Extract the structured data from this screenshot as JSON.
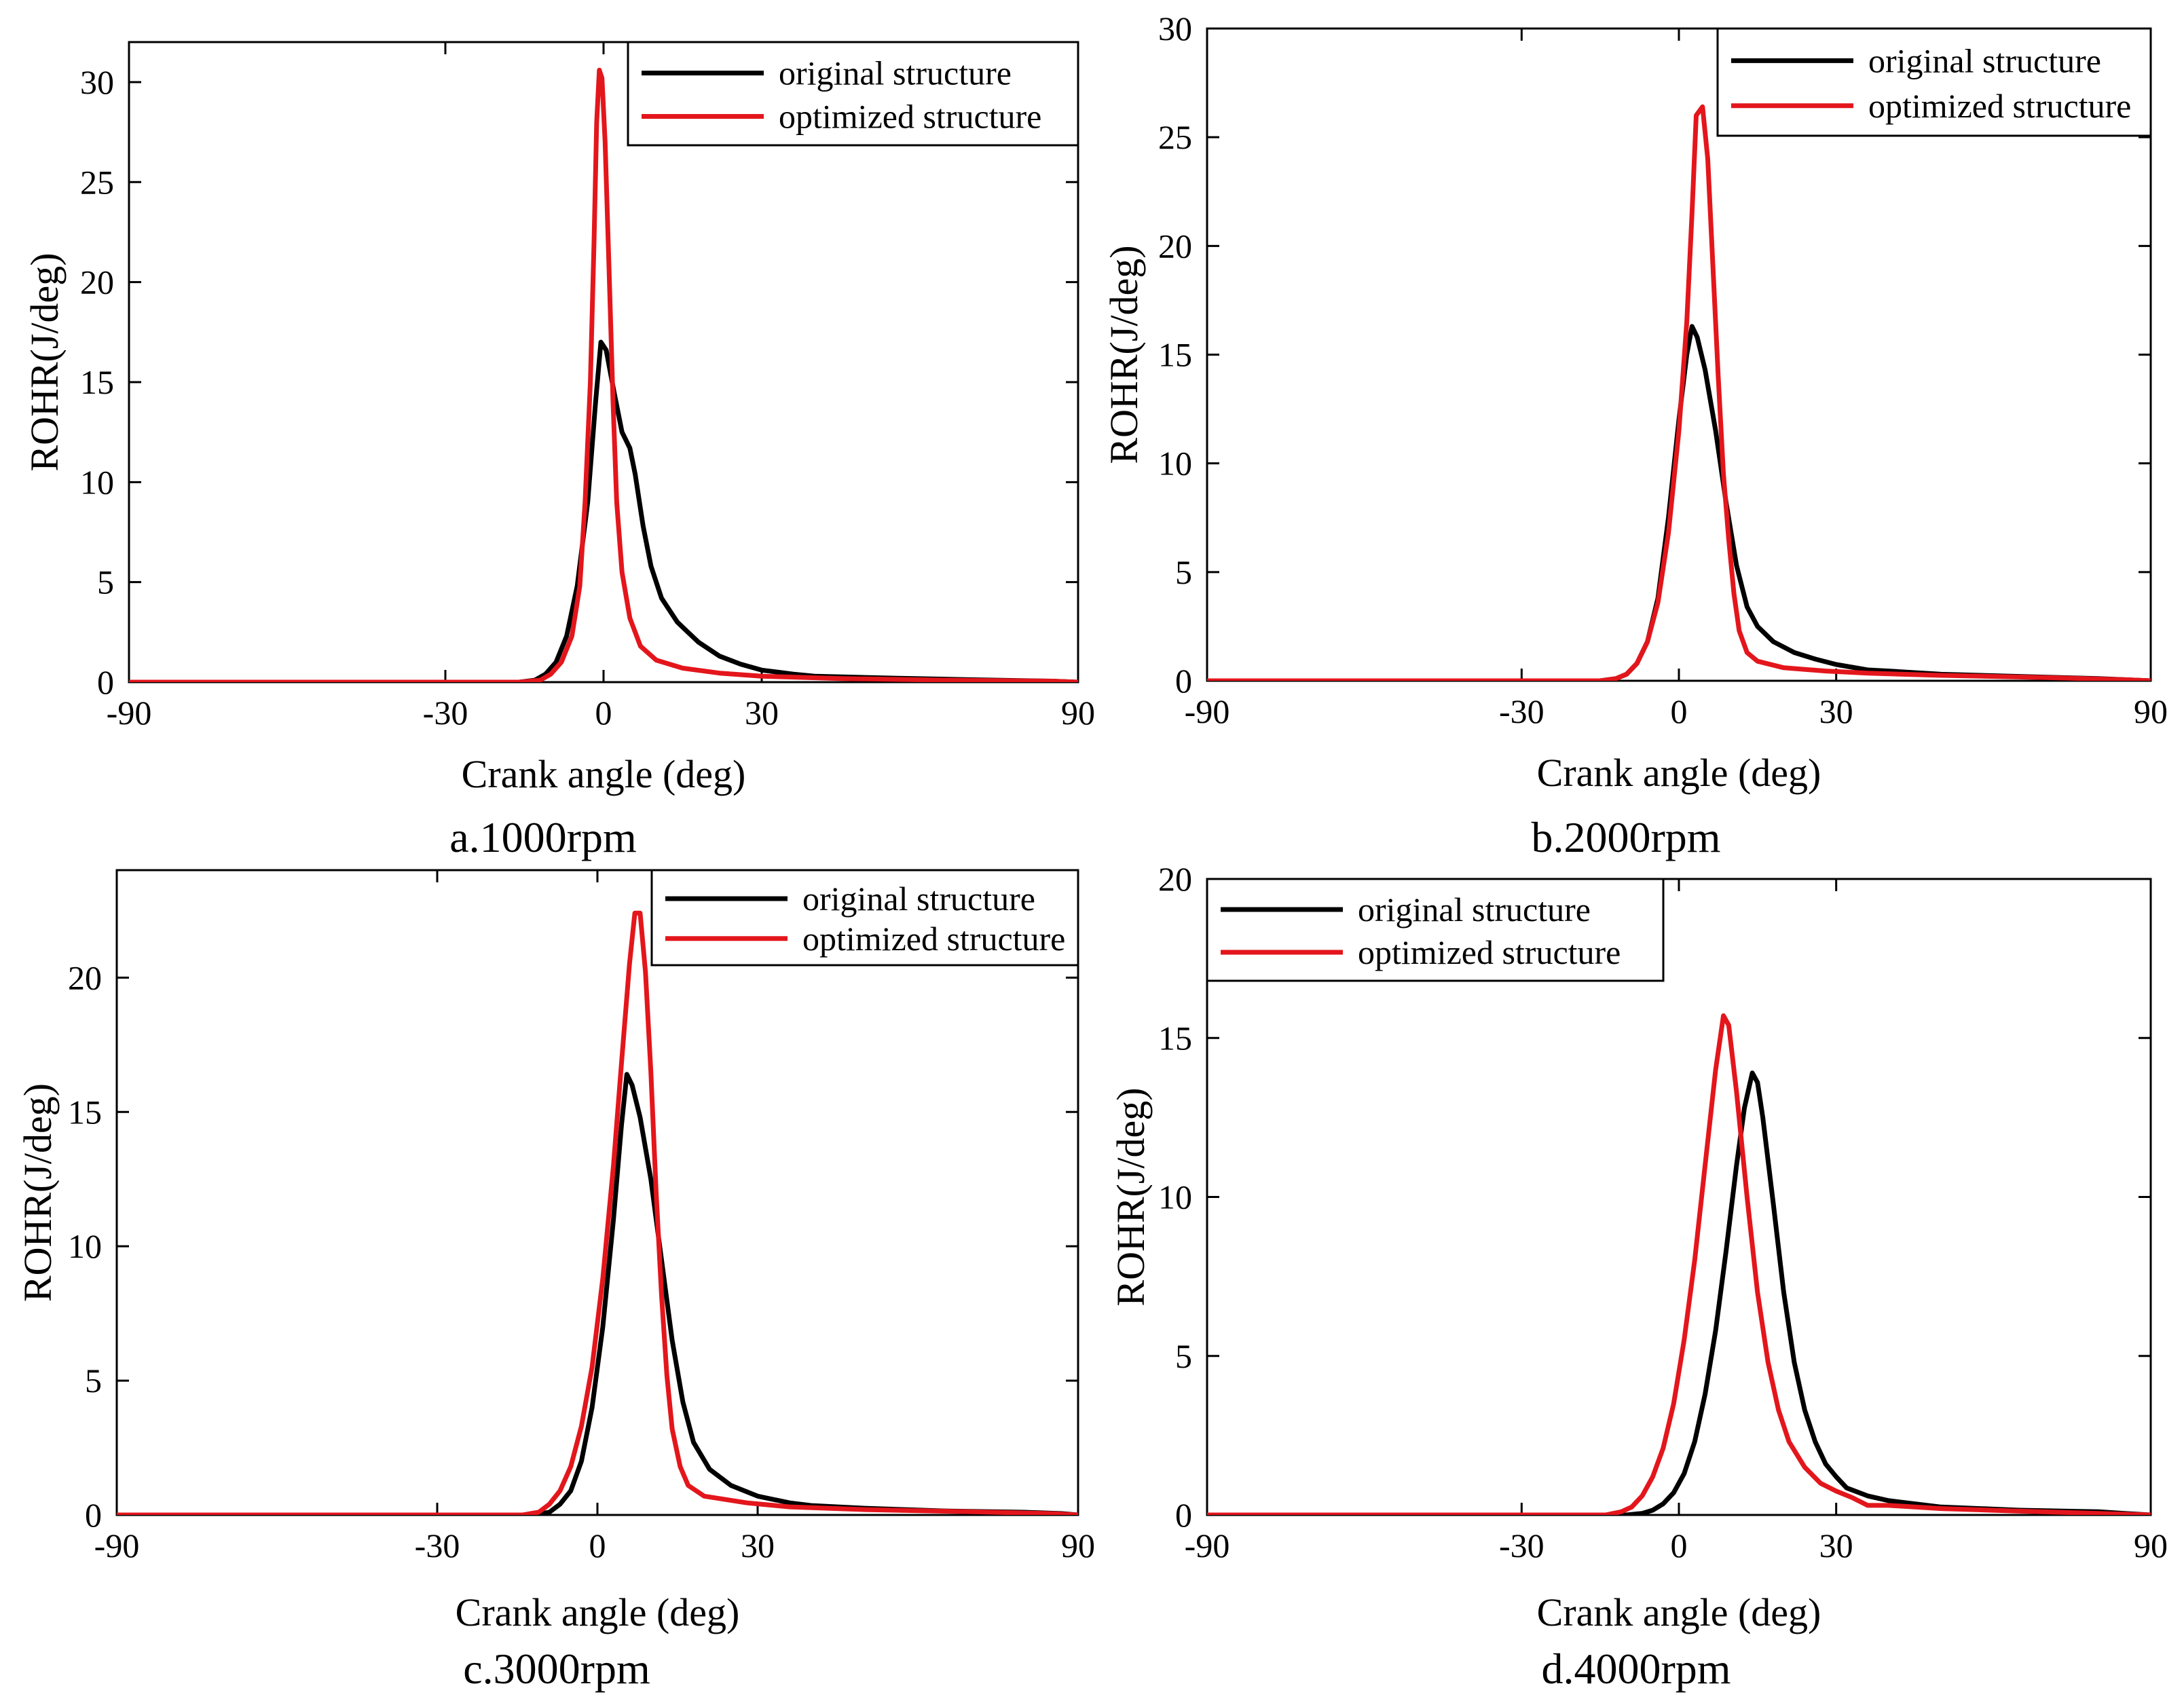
{
  "figure": {
    "legend_original": "original structure",
    "legend_optimized": "optimized structure"
  },
  "colors": {
    "original": "#000000",
    "optimized": "#e3161c"
  },
  "chart_data": [
    {
      "type": "line",
      "caption": "a.1000rpm",
      "xlabel": "Crank angle (deg)",
      "ylabel": "ROHR(J/deg)",
      "xlim": [
        -90,
        90
      ],
      "ylim": [
        0,
        32
      ],
      "xticks": [
        -90,
        -30,
        0,
        30,
        90
      ],
      "yticks": [
        0,
        5,
        10,
        15,
        20,
        25,
        30
      ],
      "legend_position": "top-right",
      "series": [
        {
          "name": "original structure",
          "color": "#000000",
          "points": [
            [
              -90,
              0
            ],
            [
              -16,
              0
            ],
            [
              -13,
              0.1
            ],
            [
              -11,
              0.4
            ],
            [
              -9,
              1.0
            ],
            [
              -7,
              2.3
            ],
            [
              -5,
              4.8
            ],
            [
              -3,
              9.0
            ],
            [
              -1.5,
              14.0
            ],
            [
              -0.5,
              17.0
            ],
            [
              0.5,
              16.6
            ],
            [
              2,
              14.5
            ],
            [
              3.5,
              12.5
            ],
            [
              5,
              11.7
            ],
            [
              6,
              10.4
            ],
            [
              7.5,
              7.8
            ],
            [
              9,
              5.8
            ],
            [
              11,
              4.2
            ],
            [
              14,
              3.0
            ],
            [
              18,
              2.0
            ],
            [
              22,
              1.3
            ],
            [
              26,
              0.9
            ],
            [
              30,
              0.6
            ],
            [
              36,
              0.4
            ],
            [
              40,
              0.3
            ],
            [
              55,
              0.2
            ],
            [
              70,
              0.12
            ],
            [
              85,
              0.05
            ],
            [
              90,
              0
            ]
          ]
        },
        {
          "name": "optimized structure",
          "color": "#e3161c",
          "points": [
            [
              -90,
              0
            ],
            [
              -16,
              0
            ],
            [
              -12,
              0.1
            ],
            [
              -10,
              0.4
            ],
            [
              -8,
              1.0
            ],
            [
              -6,
              2.3
            ],
            [
              -4.5,
              4.8
            ],
            [
              -3.5,
              9
            ],
            [
              -2.5,
              15
            ],
            [
              -1.8,
              22
            ],
            [
              -1.3,
              28
            ],
            [
              -0.8,
              30.6
            ],
            [
              -0.3,
              30.2
            ],
            [
              0.3,
              27
            ],
            [
              1,
              21
            ],
            [
              1.8,
              14
            ],
            [
              2.5,
              9
            ],
            [
              3.5,
              5.5
            ],
            [
              5,
              3.2
            ],
            [
              7,
              1.8
            ],
            [
              10,
              1.1
            ],
            [
              15,
              0.7
            ],
            [
              22,
              0.45
            ],
            [
              30,
              0.3
            ],
            [
              45,
              0.18
            ],
            [
              65,
              0.1
            ],
            [
              85,
              0.05
            ],
            [
              90,
              0
            ]
          ]
        }
      ]
    },
    {
      "type": "line",
      "caption": "b.2000rpm",
      "xlabel": "Crank angle (deg)",
      "ylabel": "ROHR(J/deg)",
      "xlim": [
        -90,
        90
      ],
      "ylim": [
        0,
        30
      ],
      "xticks": [
        -90,
        -30,
        0,
        30,
        90
      ],
      "yticks": [
        0,
        5,
        10,
        15,
        20,
        25,
        30
      ],
      "legend_position": "top-right",
      "series": [
        {
          "name": "original structure",
          "color": "#000000",
          "points": [
            [
              -90,
              0
            ],
            [
              -15,
              0
            ],
            [
              -12,
              0.1
            ],
            [
              -10,
              0.3
            ],
            [
              -8,
              0.8
            ],
            [
              -6,
              1.8
            ],
            [
              -4,
              3.8
            ],
            [
              -2,
              7.5
            ],
            [
              0,
              12.0
            ],
            [
              1.5,
              15.0
            ],
            [
              2.5,
              16.3
            ],
            [
              3.5,
              15.8
            ],
            [
              5,
              14.3
            ],
            [
              7,
              11.5
            ],
            [
              9,
              8.2
            ],
            [
              11,
              5.3
            ],
            [
              13,
              3.4
            ],
            [
              15,
              2.5
            ],
            [
              18,
              1.8
            ],
            [
              22,
              1.3
            ],
            [
              26,
              1.0
            ],
            [
              30,
              0.75
            ],
            [
              36,
              0.5
            ],
            [
              40,
              0.45
            ],
            [
              50,
              0.3
            ],
            [
              65,
              0.2
            ],
            [
              80,
              0.1
            ],
            [
              85,
              0.05
            ],
            [
              90,
              0
            ]
          ]
        },
        {
          "name": "optimized structure",
          "color": "#e3161c",
          "points": [
            [
              -90,
              0
            ],
            [
              -15,
              0
            ],
            [
              -12,
              0.1
            ],
            [
              -10,
              0.3
            ],
            [
              -8,
              0.8
            ],
            [
              -6,
              1.8
            ],
            [
              -4,
              3.6
            ],
            [
              -2,
              6.8
            ],
            [
              0,
              11.5
            ],
            [
              1.5,
              16.5
            ],
            [
              2.5,
              21.5
            ],
            [
              3.3,
              26.0
            ],
            [
              4.5,
              26.4
            ],
            [
              5.5,
              24
            ],
            [
              6.5,
              19
            ],
            [
              7.5,
              14
            ],
            [
              8.5,
              9.5
            ],
            [
              9.5,
              6.5
            ],
            [
              10.5,
              4.0
            ],
            [
              11.5,
              2.3
            ],
            [
              13,
              1.3
            ],
            [
              15,
              0.9
            ],
            [
              20,
              0.6
            ],
            [
              28,
              0.45
            ],
            [
              36,
              0.35
            ],
            [
              50,
              0.25
            ],
            [
              70,
              0.15
            ],
            [
              85,
              0.05
            ],
            [
              90,
              0
            ]
          ]
        }
      ]
    },
    {
      "type": "line",
      "caption": "c.3000rpm",
      "xlabel": "Crank angle (deg)",
      "ylabel": "ROHR(J/deg)",
      "xlim": [
        -90,
        90
      ],
      "ylim": [
        0,
        24
      ],
      "xticks": [
        -90,
        -30,
        0,
        30,
        90
      ],
      "yticks": [
        0,
        5,
        10,
        15,
        20
      ],
      "legend_position": "top-right",
      "series": [
        {
          "name": "original structure",
          "color": "#000000",
          "points": [
            [
              -90,
              0
            ],
            [
              -12,
              0
            ],
            [
              -9,
              0.1
            ],
            [
              -7,
              0.4
            ],
            [
              -5,
              0.9
            ],
            [
              -3,
              2.0
            ],
            [
              -1,
              4.0
            ],
            [
              1,
              7.0
            ],
            [
              3,
              11.0
            ],
            [
              4.5,
              14.5
            ],
            [
              5.5,
              16.4
            ],
            [
              6.5,
              16.0
            ],
            [
              8,
              14.8
            ],
            [
              10,
              12.5
            ],
            [
              12,
              9.5
            ],
            [
              14,
              6.5
            ],
            [
              16,
              4.2
            ],
            [
              18,
              2.7
            ],
            [
              21,
              1.7
            ],
            [
              25,
              1.1
            ],
            [
              30,
              0.7
            ],
            [
              36,
              0.45
            ],
            [
              40,
              0.35
            ],
            [
              50,
              0.25
            ],
            [
              65,
              0.15
            ],
            [
              80,
              0.1
            ],
            [
              87,
              0.05
            ],
            [
              90,
              0
            ]
          ]
        },
        {
          "name": "optimized structure",
          "color": "#e3161c",
          "points": [
            [
              -90,
              0
            ],
            [
              -14,
              0
            ],
            [
              -11,
              0.1
            ],
            [
              -9,
              0.4
            ],
            [
              -7,
              0.9
            ],
            [
              -5,
              1.8
            ],
            [
              -3,
              3.3
            ],
            [
              -1,
              5.5
            ],
            [
              1,
              8.8
            ],
            [
              3,
              13.0
            ],
            [
              4.5,
              16.8
            ],
            [
              6,
              20.5
            ],
            [
              7,
              22.4
            ],
            [
              8,
              22.4
            ],
            [
              9,
              20.2
            ],
            [
              10,
              16.5
            ],
            [
              11,
              12.0
            ],
            [
              12,
              8.2
            ],
            [
              13,
              5.2
            ],
            [
              14,
              3.2
            ],
            [
              15.5,
              1.8
            ],
            [
              17,
              1.1
            ],
            [
              20,
              0.7
            ],
            [
              28,
              0.45
            ],
            [
              36,
              0.3
            ],
            [
              50,
              0.2
            ],
            [
              70,
              0.12
            ],
            [
              85,
              0.05
            ],
            [
              90,
              0
            ]
          ]
        }
      ]
    },
    {
      "type": "line",
      "caption": "d.4000rpm",
      "xlabel": "Crank angle (deg)",
      "ylabel": "ROHR(J/deg)",
      "xlim": [
        -90,
        90
      ],
      "ylim": [
        0,
        20
      ],
      "xticks": [
        -90,
        -30,
        0,
        30,
        90
      ],
      "yticks": [
        0,
        5,
        10,
        15,
        20
      ],
      "legend_position": "top-left",
      "series": [
        {
          "name": "original structure",
          "color": "#000000",
          "points": [
            [
              -90,
              0
            ],
            [
              -10,
              0
            ],
            [
              -7,
              0.05
            ],
            [
              -5,
              0.15
            ],
            [
              -3,
              0.35
            ],
            [
              -1,
              0.7
            ],
            [
              1,
              1.3
            ],
            [
              3,
              2.3
            ],
            [
              5,
              3.8
            ],
            [
              7,
              5.8
            ],
            [
              9,
              8.3
            ],
            [
              11,
              11.0
            ],
            [
              12.5,
              12.8
            ],
            [
              14,
              13.9
            ],
            [
              15,
              13.6
            ],
            [
              16,
              12.5
            ],
            [
              18,
              9.8
            ],
            [
              20,
              7.0
            ],
            [
              22,
              4.8
            ],
            [
              24,
              3.3
            ],
            [
              26,
              2.3
            ],
            [
              28,
              1.6
            ],
            [
              30,
              1.2
            ],
            [
              32,
              0.85
            ],
            [
              36,
              0.6
            ],
            [
              40,
              0.45
            ],
            [
              50,
              0.25
            ],
            [
              65,
              0.15
            ],
            [
              80,
              0.1
            ],
            [
              85,
              0.05
            ],
            [
              90,
              0
            ]
          ]
        },
        {
          "name": "optimized structure",
          "color": "#e3161c",
          "points": [
            [
              -90,
              0
            ],
            [
              -14,
              0
            ],
            [
              -11,
              0.1
            ],
            [
              -9,
              0.25
            ],
            [
              -7,
              0.6
            ],
            [
              -5,
              1.2
            ],
            [
              -3,
              2.1
            ],
            [
              -1,
              3.5
            ],
            [
              1,
              5.5
            ],
            [
              3,
              8.0
            ],
            [
              5,
              11.0
            ],
            [
              7,
              14.0
            ],
            [
              8.5,
              15.7
            ],
            [
              9.5,
              15.4
            ],
            [
              11,
              13.3
            ],
            [
              13,
              10.0
            ],
            [
              15,
              7.0
            ],
            [
              17,
              4.8
            ],
            [
              19,
              3.3
            ],
            [
              21,
              2.3
            ],
            [
              24,
              1.5
            ],
            [
              27,
              1.0
            ],
            [
              30,
              0.75
            ],
            [
              33,
              0.55
            ],
            [
              36,
              0.3
            ],
            [
              40,
              0.3
            ],
            [
              50,
              0.2
            ],
            [
              65,
              0.12
            ],
            [
              80,
              0.05
            ],
            [
              90,
              0
            ]
          ]
        }
      ]
    }
  ]
}
